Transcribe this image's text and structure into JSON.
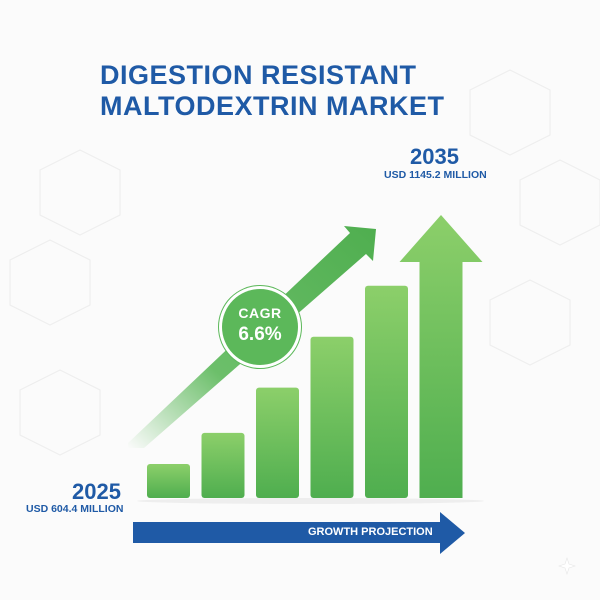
{
  "title": {
    "line1": "DIGESTION RESISTANT",
    "line2": "MALTODEXTRIN MARKET"
  },
  "end": {
    "year": "2035",
    "amount_label": "USD 1145.2 MILLION"
  },
  "start": {
    "year": "2025",
    "amount_label": "USD 604.4 MILLION"
  },
  "cagr": {
    "label": "CAGR",
    "value": "6.6%"
  },
  "footer": {
    "label": "GROWTH PROJECTION"
  },
  "colors": {
    "title": "#1f5aa6",
    "bar_light": "#8ccf6a",
    "bar_dark": "#4fae4f",
    "badge": "#5cb85a",
    "footer_arrow": "#1f5aa6"
  },
  "chart_data": {
    "type": "bar",
    "categories": [
      "2025",
      "",
      "",
      "",
      "",
      "2035"
    ],
    "values": [
      604.4,
      null,
      null,
      null,
      null,
      1145.2
    ],
    "relative_heights": [
      0.12,
      0.23,
      0.39,
      0.57,
      0.75,
      1.0
    ],
    "title": "DIGESTION RESISTANT MALTODEXTRIN MARKET",
    "unit": "USD MILLION",
    "cagr": "6.6%",
    "last_bar_style": "arrow",
    "grid": false,
    "legend": "none"
  }
}
